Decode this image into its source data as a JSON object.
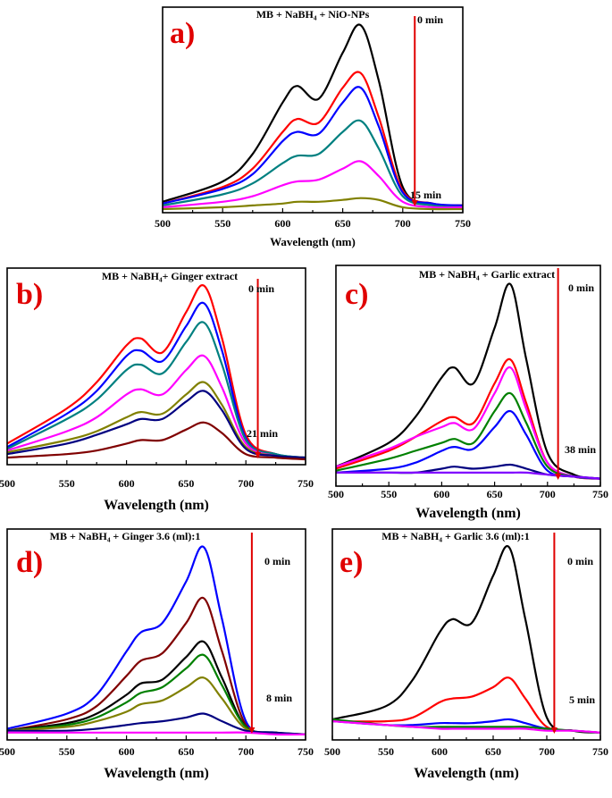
{
  "chart_data": [
    {
      "type": "line",
      "panel_label": "a)",
      "title": "MB + NaBH₄ + NiO-NPs",
      "xlabel": "Wavelength (nm)",
      "ylabel": "",
      "xlim": [
        500,
        750
      ],
      "ylim": [
        0,
        1.05
      ],
      "xticks": [
        500,
        550,
        600,
        650,
        700,
        750
      ],
      "arrow": {
        "x": 710,
        "from_label": "0 min",
        "to_label": "15 min",
        "color": "#e00000"
      },
      "x": [
        500,
        550,
        575,
        600,
        612,
        630,
        650,
        665,
        680,
        700,
        725,
        750
      ],
      "series": [
        {
          "color": "#000000",
          "values": [
            0.04,
            0.15,
            0.3,
            0.58,
            0.67,
            0.6,
            0.85,
            1.0,
            0.7,
            0.12,
            0.03,
            0.02
          ]
        },
        {
          "color": "#ff0000",
          "values": [
            0.03,
            0.12,
            0.22,
            0.42,
            0.49,
            0.47,
            0.66,
            0.74,
            0.5,
            0.1,
            0.03,
            0.02
          ]
        },
        {
          "color": "#0000ff",
          "values": [
            0.03,
            0.11,
            0.19,
            0.37,
            0.42,
            0.41,
            0.58,
            0.66,
            0.45,
            0.09,
            0.03,
            0.02
          ]
        },
        {
          "color": "#008080",
          "values": [
            0.02,
            0.08,
            0.14,
            0.25,
            0.29,
            0.3,
            0.42,
            0.48,
            0.33,
            0.07,
            0.02,
            0.01
          ]
        },
        {
          "color": "#ff00ff",
          "values": [
            0.01,
            0.04,
            0.07,
            0.13,
            0.15,
            0.16,
            0.22,
            0.26,
            0.18,
            0.04,
            0.01,
            0.01
          ]
        },
        {
          "color": "#808000",
          "values": [
            0.0,
            0.01,
            0.02,
            0.03,
            0.04,
            0.04,
            0.05,
            0.06,
            0.05,
            0.01,
            0.0,
            0.0
          ]
        }
      ]
    },
    {
      "type": "line",
      "panel_label": "b)",
      "title": "MB + NaBH₄+ Ginger extract",
      "xlabel": "Wavelength (nm)",
      "ylabel": "",
      "xlim": [
        500,
        750
      ],
      "ylim": [
        0,
        1.05
      ],
      "xticks": [
        500,
        550,
        600,
        650,
        700,
        750
      ],
      "arrow": {
        "x": 710,
        "from_label": "0 min",
        "to_label": "21 min",
        "color": "#e00000"
      },
      "x": [
        500,
        550,
        575,
        600,
        612,
        630,
        650,
        665,
        680,
        700,
        725,
        750
      ],
      "series": [
        {
          "color": "#ff0000",
          "values": [
            0.1,
            0.3,
            0.45,
            0.66,
            0.7,
            0.62,
            0.85,
            1.0,
            0.7,
            0.15,
            0.04,
            0.02
          ]
        },
        {
          "color": "#0000ff",
          "values": [
            0.08,
            0.27,
            0.4,
            0.6,
            0.63,
            0.57,
            0.77,
            0.9,
            0.63,
            0.13,
            0.04,
            0.02
          ]
        },
        {
          "color": "#008080",
          "values": [
            0.07,
            0.24,
            0.35,
            0.52,
            0.55,
            0.5,
            0.68,
            0.79,
            0.55,
            0.12,
            0.04,
            0.02
          ]
        },
        {
          "color": "#ff00ff",
          "values": [
            0.06,
            0.17,
            0.25,
            0.38,
            0.41,
            0.38,
            0.52,
            0.6,
            0.42,
            0.1,
            0.03,
            0.02
          ]
        },
        {
          "color": "#808000",
          "values": [
            0.05,
            0.12,
            0.17,
            0.25,
            0.28,
            0.27,
            0.38,
            0.45,
            0.32,
            0.08,
            0.03,
            0.02
          ]
        },
        {
          "color": "#000080",
          "values": [
            0.04,
            0.1,
            0.15,
            0.21,
            0.24,
            0.24,
            0.34,
            0.4,
            0.29,
            0.07,
            0.03,
            0.02
          ]
        },
        {
          "color": "#800000",
          "values": [
            0.02,
            0.04,
            0.06,
            0.1,
            0.12,
            0.12,
            0.18,
            0.22,
            0.16,
            0.04,
            0.02,
            0.01
          ]
        }
      ]
    },
    {
      "type": "line",
      "panel_label": "c)",
      "title": "MB + NaBH₄ + Garlic extract",
      "xlabel": "Wavelength (nm)",
      "ylabel": "",
      "xlim": [
        500,
        750
      ],
      "ylim": [
        0,
        1.05
      ],
      "xticks": [
        500,
        550,
        600,
        650,
        700,
        750
      ],
      "arrow": {
        "x": 710,
        "from_label": "0 min",
        "to_label": "38 min",
        "color": "#e00000"
      },
      "x": [
        500,
        550,
        575,
        600,
        612,
        630,
        650,
        665,
        680,
        700,
        725,
        750
      ],
      "series": [
        {
          "color": "#000000",
          "values": [
            0.08,
            0.2,
            0.33,
            0.53,
            0.58,
            0.5,
            0.78,
            1.0,
            0.62,
            0.15,
            0.04,
            0.02
          ]
        },
        {
          "color": "#ff0000",
          "values": [
            0.07,
            0.16,
            0.23,
            0.31,
            0.33,
            0.3,
            0.5,
            0.62,
            0.4,
            0.1,
            0.03,
            0.02
          ]
        },
        {
          "color": "#ff00ff",
          "values": [
            0.08,
            0.17,
            0.23,
            0.28,
            0.3,
            0.27,
            0.45,
            0.58,
            0.37,
            0.1,
            0.03,
            0.02
          ]
        },
        {
          "color": "#008000",
          "values": [
            0.06,
            0.12,
            0.16,
            0.2,
            0.22,
            0.2,
            0.36,
            0.45,
            0.3,
            0.08,
            0.03,
            0.02
          ]
        },
        {
          "color": "#0000ff",
          "values": [
            0.05,
            0.07,
            0.1,
            0.16,
            0.18,
            0.17,
            0.28,
            0.36,
            0.24,
            0.06,
            0.03,
            0.02
          ]
        },
        {
          "color": "#000080",
          "values": [
            0.05,
            0.05,
            0.05,
            0.07,
            0.08,
            0.07,
            0.08,
            0.09,
            0.07,
            0.04,
            0.03,
            0.02
          ]
        },
        {
          "color": "#8000ff",
          "values": [
            0.05,
            0.05,
            0.05,
            0.05,
            0.05,
            0.05,
            0.05,
            0.05,
            0.05,
            0.04,
            0.03,
            0.02
          ]
        }
      ]
    },
    {
      "type": "line",
      "panel_label": "d)",
      "title": "MB + NaBH₄ + Ginger 3.6 (ml):1",
      "xlabel": "Wavelength (nm)",
      "ylabel": "",
      "xlim": [
        500,
        750
      ],
      "ylim": [
        0,
        1.05
      ],
      "xticks": [
        500,
        550,
        600,
        650,
        700,
        750
      ],
      "arrow": {
        "x": 705,
        "from_label": "0 min",
        "to_label": "8 min",
        "color": "#e00000"
      },
      "x": [
        500,
        550,
        575,
        600,
        612,
        630,
        650,
        665,
        680,
        700,
        725,
        750
      ],
      "series": [
        {
          "color": "#0000ff",
          "values": [
            0.04,
            0.12,
            0.22,
            0.45,
            0.55,
            0.6,
            0.82,
            1.0,
            0.62,
            0.08,
            0.02,
            0.01
          ]
        },
        {
          "color": "#800000",
          "values": [
            0.03,
            0.09,
            0.16,
            0.32,
            0.4,
            0.44,
            0.6,
            0.73,
            0.45,
            0.06,
            0.02,
            0.01
          ]
        },
        {
          "color": "#000000",
          "values": [
            0.03,
            0.07,
            0.12,
            0.22,
            0.28,
            0.3,
            0.42,
            0.5,
            0.31,
            0.05,
            0.02,
            0.01
          ]
        },
        {
          "color": "#008000",
          "values": [
            0.03,
            0.06,
            0.1,
            0.18,
            0.23,
            0.26,
            0.36,
            0.43,
            0.27,
            0.05,
            0.02,
            0.01
          ]
        },
        {
          "color": "#808000",
          "values": [
            0.03,
            0.05,
            0.08,
            0.13,
            0.17,
            0.19,
            0.26,
            0.31,
            0.2,
            0.04,
            0.02,
            0.01
          ]
        },
        {
          "color": "#000080",
          "values": [
            0.03,
            0.03,
            0.04,
            0.06,
            0.07,
            0.08,
            0.1,
            0.12,
            0.08,
            0.03,
            0.02,
            0.01
          ]
        },
        {
          "color": "#ff00ff",
          "values": [
            0.02,
            0.02,
            0.02,
            0.02,
            0.02,
            0.02,
            0.02,
            0.02,
            0.02,
            0.02,
            0.01,
            0.01
          ]
        }
      ]
    },
    {
      "type": "line",
      "panel_label": "e)",
      "title": "MB + NaBH₄ + Garlic 3.6 (ml):1",
      "xlabel": "Wavelength (nm)",
      "ylabel": "",
      "xlim": [
        500,
        750
      ],
      "ylim": [
        0,
        1.05
      ],
      "xticks": [
        500,
        550,
        600,
        650,
        700,
        750
      ],
      "arrow": {
        "x": 707,
        "from_label": "0 min",
        "to_label": "5 min",
        "color": "#e00000"
      },
      "x": [
        500,
        550,
        575,
        600,
        612,
        630,
        650,
        665,
        680,
        700,
        725,
        750
      ],
      "series": [
        {
          "color": "#000000",
          "values": [
            0.09,
            0.16,
            0.3,
            0.55,
            0.62,
            0.6,
            0.85,
            1.0,
            0.62,
            0.1,
            0.03,
            0.02
          ]
        },
        {
          "color": "#ff0000",
          "values": [
            0.08,
            0.08,
            0.1,
            0.18,
            0.2,
            0.21,
            0.26,
            0.31,
            0.2,
            0.05,
            0.03,
            0.02
          ]
        },
        {
          "color": "#0000ff",
          "values": [
            0.08,
            0.06,
            0.06,
            0.07,
            0.07,
            0.07,
            0.08,
            0.09,
            0.07,
            0.04,
            0.03,
            0.02
          ]
        },
        {
          "color": "#008000",
          "values": [
            0.09,
            0.06,
            0.05,
            0.05,
            0.05,
            0.05,
            0.05,
            0.05,
            0.05,
            0.04,
            0.03,
            0.02
          ]
        },
        {
          "color": "#ff00ff",
          "values": [
            0.08,
            0.06,
            0.05,
            0.04,
            0.04,
            0.04,
            0.04,
            0.04,
            0.04,
            0.03,
            0.03,
            0.02
          ]
        }
      ]
    }
  ]
}
